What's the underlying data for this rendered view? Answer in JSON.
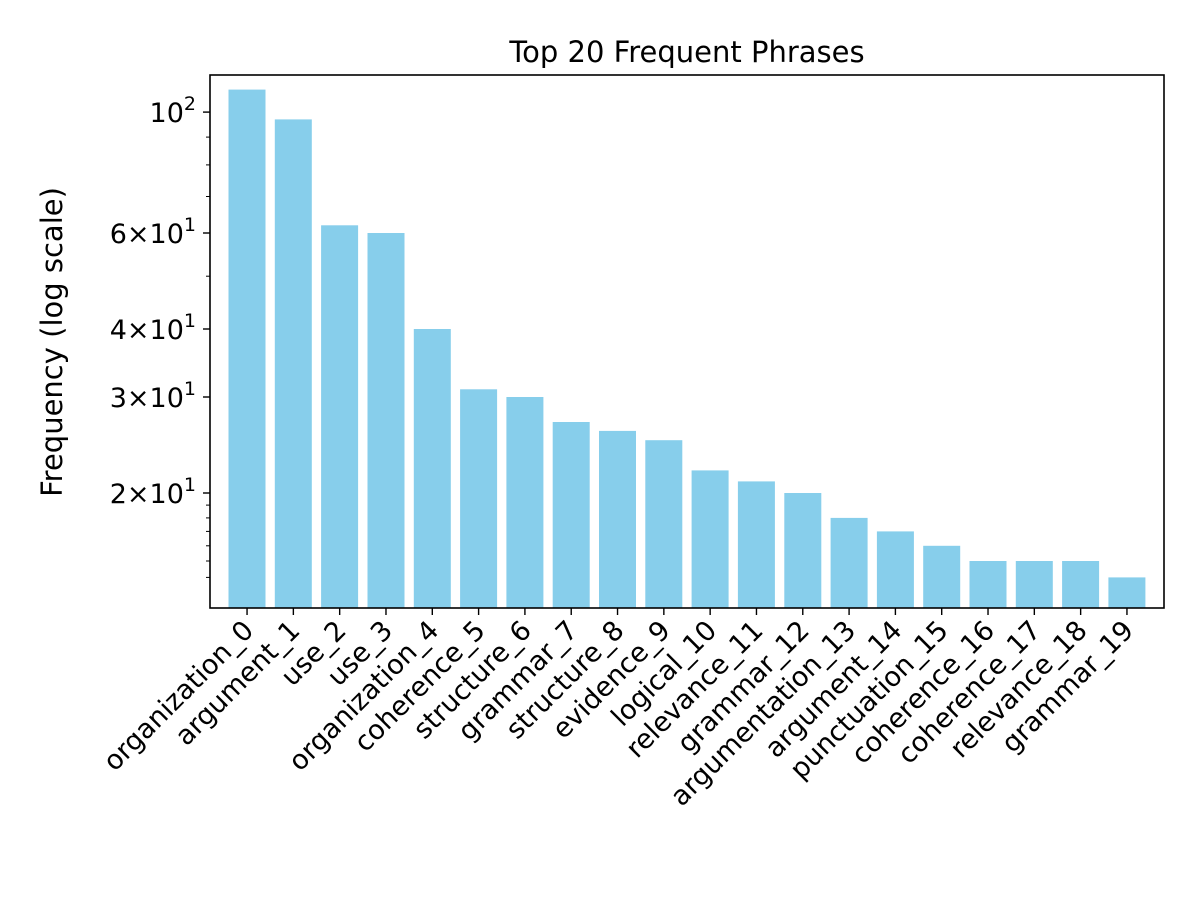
{
  "chart_data": {
    "type": "bar",
    "title": "Top 20 Frequent Phrases",
    "xlabel": "",
    "ylabel": "Frequency (log scale)",
    "yscale": "log",
    "ylim": [
      12.3,
      117
    ],
    "bar_color": "#87CEEB",
    "categories": [
      "organization_0",
      "argument_1",
      "use_2",
      "use_3",
      "organization_4",
      "coherence_5",
      "structure_6",
      "grammar_7",
      "structure_8",
      "evidence_9",
      "logical_10",
      "relevance_11",
      "grammar_12",
      "argumentation_13",
      "argument_14",
      "punctuation_15",
      "coherence_16",
      "coherence_17",
      "relevance_18",
      "grammar_19"
    ],
    "values": [
      110,
      97,
      62,
      60,
      40,
      31,
      30,
      27,
      26,
      25,
      22,
      21,
      20,
      18,
      17,
      16,
      15,
      15,
      15,
      14
    ],
    "yticks": [
      {
        "value": 20,
        "mant": "2",
        "exp": "1"
      },
      {
        "value": 30,
        "mant": "3",
        "exp": "1"
      },
      {
        "value": 40,
        "mant": "4",
        "exp": "1"
      },
      {
        "value": 60,
        "mant": "6",
        "exp": "1"
      },
      {
        "value": 100,
        "mant": "",
        "exp": "2"
      }
    ],
    "minor_yticks": [
      14,
      15,
      16,
      17,
      18,
      19,
      50,
      70,
      80,
      90
    ]
  }
}
